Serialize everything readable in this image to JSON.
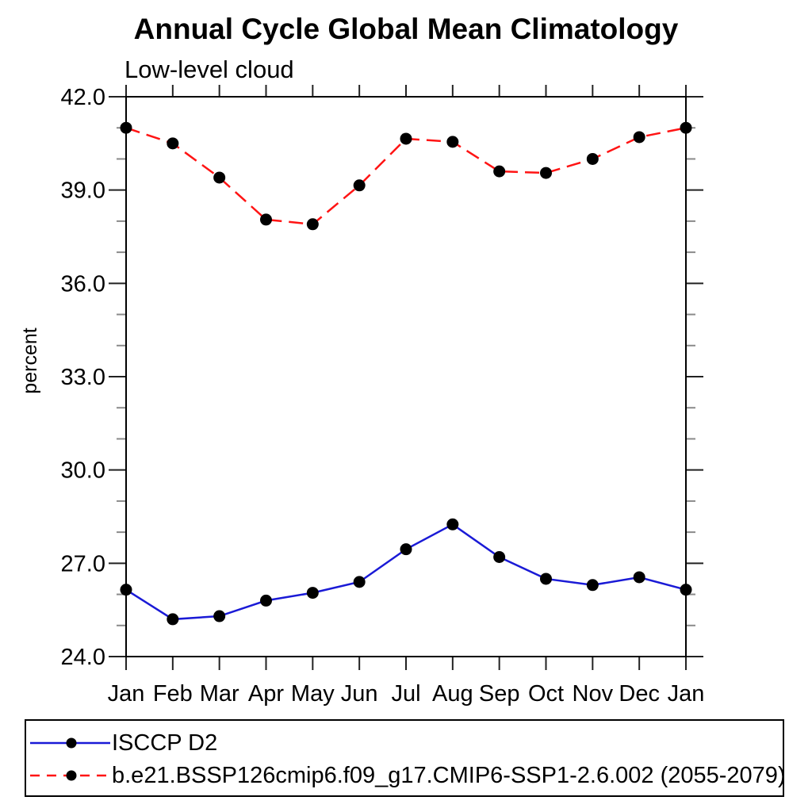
{
  "page": {
    "title": "Annual Cycle Global Mean Climatology",
    "subtitle": "Low-level cloud"
  },
  "chart_data": {
    "type": "line",
    "title": "Annual Cycle Global Mean Climatology",
    "subtitle": "Low-level cloud",
    "xlabel": "",
    "ylabel": "percent",
    "categories": [
      "Jan",
      "Feb",
      "Mar",
      "Apr",
      "May",
      "Jun",
      "Jul",
      "Aug",
      "Sep",
      "Oct",
      "Nov",
      "Dec",
      "Jan"
    ],
    "ylim": [
      24,
      42
    ],
    "y_major_ticks": [
      24,
      27,
      30,
      33,
      36,
      39,
      42
    ],
    "y_major_tick_labels": [
      "24.0",
      "27.0",
      "30.0",
      "33.0",
      "36.0",
      "39.0",
      "42.0"
    ],
    "y_minor_tick_step": 1,
    "grid": false,
    "legend_position": "bottom-left-box",
    "frame_color": "#000000",
    "minor_tick_color": "#8a8a8a",
    "series": [
      {
        "name": "ISCCP D2",
        "color": "#1a1ad6",
        "line_style": "solid",
        "marker": "filled-circle",
        "marker_color": "#000000",
        "values": [
          26.15,
          25.2,
          25.3,
          25.8,
          26.05,
          26.4,
          27.45,
          28.25,
          27.2,
          26.5,
          26.3,
          26.55,
          26.15
        ]
      },
      {
        "name": "b.e21.BSSP126cmip6.f09_g17.CMIP6-SSP1-2.6.002 (2055-2079)",
        "color": "#ff1414",
        "line_style": "dashed",
        "marker": "filled-circle",
        "marker_color": "#000000",
        "values": [
          41.0,
          40.5,
          39.4,
          38.05,
          37.9,
          39.15,
          40.65,
          40.55,
          39.6,
          39.55,
          40.0,
          40.7,
          41.0
        ]
      }
    ]
  }
}
